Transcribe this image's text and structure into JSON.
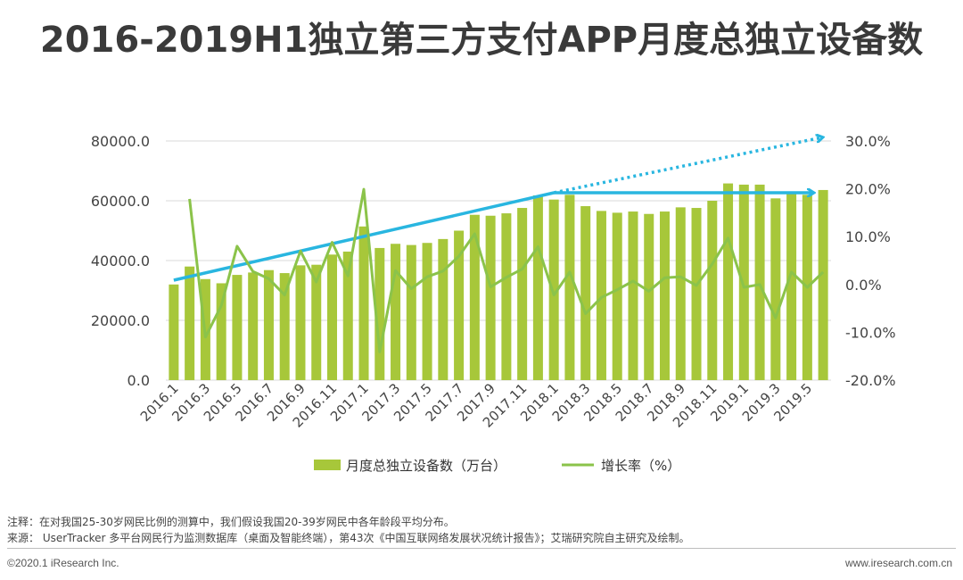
{
  "title": "2016-2019H1独立第三方支付APP月度总独立设备数",
  "chart_data": {
    "type": "bar+line",
    "left_axis": {
      "ticks": [
        "0.0",
        "20000.0",
        "40000.0",
        "60000.0",
        "80000.0"
      ],
      "ylim": [
        0,
        80000
      ]
    },
    "right_axis": {
      "ticks": [
        "-20.0%",
        "-10.0%",
        "0.0%",
        "10.0%",
        "20.0%",
        "30.0%"
      ],
      "ylim": [
        -20,
        30
      ]
    },
    "x_tick_labels": [
      "2016.1",
      "2016.3",
      "2016.5",
      "2016.7",
      "2016.9",
      "2016.11",
      "2017.1",
      "2017.3",
      "2017.5",
      "2017.7",
      "2017.9",
      "2017.11",
      "2018.1",
      "2018.3",
      "2018.5",
      "2018.7",
      "2018.9",
      "2018.11",
      "2019.1",
      "2019.3",
      "2019.5"
    ],
    "categories": [
      "2016.1",
      "2016.2",
      "2016.3",
      "2016.4",
      "2016.5",
      "2016.6",
      "2016.7",
      "2016.8",
      "2016.9",
      "2016.10",
      "2016.11",
      "2016.12",
      "2017.1",
      "2017.2",
      "2017.3",
      "2017.4",
      "2017.5",
      "2017.6",
      "2017.7",
      "2017.8",
      "2017.9",
      "2017.10",
      "2017.11",
      "2017.12",
      "2018.1",
      "2018.2",
      "2018.3",
      "2018.4",
      "2018.5",
      "2018.6",
      "2018.7",
      "2018.8",
      "2018.9",
      "2018.10",
      "2018.11",
      "2018.12",
      "2019.1",
      "2019.2",
      "2019.3",
      "2019.4",
      "2019.5",
      "2019.6"
    ],
    "series": [
      {
        "name": "月度总独立设备数（万台）",
        "type": "bar",
        "axis": "left",
        "color": "#a7c73a",
        "values": [
          32000,
          38000,
          33800,
          32400,
          35200,
          36000,
          36800,
          35800,
          38400,
          38600,
          42000,
          43000,
          51400,
          44200,
          45600,
          45200,
          45900,
          47200,
          50000,
          55300,
          55000,
          55800,
          57600,
          61800,
          60400,
          62000,
          58200,
          56600,
          56000,
          56400,
          55600,
          56400,
          57800,
          57600,
          60000,
          65800,
          65400,
          65400,
          60800,
          62400,
          62000,
          63600
        ]
      },
      {
        "name": "增长率（%）",
        "type": "line",
        "axis": "right",
        "color": "#8bc34a",
        "values": [
          null,
          17.9,
          -11.0,
          -4.4,
          8.0,
          2.7,
          1.2,
          -2.2,
          7.0,
          0.5,
          8.8,
          1.8,
          19.9,
          -14.1,
          2.9,
          -0.9,
          1.6,
          2.8,
          5.9,
          10.6,
          -0.5,
          1.5,
          3.2,
          7.9,
          -2.2,
          2.6,
          -6.1,
          -2.7,
          -1.1,
          0.7,
          -1.4,
          1.4,
          1.6,
          -0.2,
          4.3,
          9.7,
          -0.6,
          0.0,
          -7.0,
          2.6,
          -0.6,
          2.6
        ]
      }
    ],
    "trend_arrows": {
      "color": "#29b6e0"
    },
    "legend_position": "bottom"
  },
  "notes": {
    "note": "注释：在对我国25-30岁网民比例的测算中，我们假设我国20-39岁网民中各年龄段平均分布。",
    "source": "来源：  UserTracker 多平台网民行为监测数据库（桌面及智能终端），第43次《中国互联网络发展状况统计报告》；艾瑞研究院自主研究及绘制。"
  },
  "footer": {
    "copyright": "©2020.1 iResearch Inc.",
    "website": "www.iresearch.com.cn"
  }
}
